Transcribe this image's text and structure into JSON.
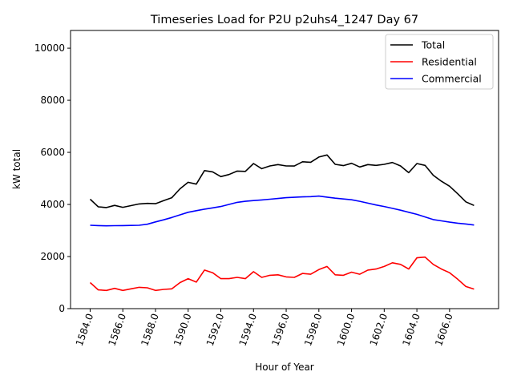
{
  "chart_data": {
    "type": "line",
    "title": "Timeseries Load for P2U p2uhs4_1247  Day 67",
    "xlabel": "Hour of Year",
    "ylabel": "kW total",
    "xlim": [
      1582.8,
      1609.0
    ],
    "ylim": [
      0,
      10680
    ],
    "xticks": [
      1584,
      1586,
      1588,
      1590,
      1592,
      1594,
      1596,
      1598,
      1600,
      1602,
      1604,
      1606
    ],
    "xtick_labels": [
      "1584.0",
      "1586.0",
      "1588.0",
      "1590.0",
      "1592.0",
      "1594.0",
      "1596.0",
      "1598.0",
      "1600.0",
      "1602.0",
      "1604.0",
      "1606.0"
    ],
    "yticks": [
      0,
      2000,
      4000,
      6000,
      8000,
      10000
    ],
    "ytick_labels": [
      "0",
      "2000",
      "4000",
      "6000",
      "8000",
      "10000"
    ],
    "grid": false,
    "legend_position": "top-right",
    "x_start": 1584.0,
    "x_step": 0.5,
    "series": [
      {
        "name": "Total",
        "color": "#000000",
        "values": [
          4200,
          3910,
          3880,
          3965,
          3890,
          3955,
          4020,
          4040,
          4030,
          4150,
          4260,
          4600,
          4850,
          4780,
          5300,
          5250,
          5070,
          5150,
          5280,
          5270,
          5570,
          5375,
          5480,
          5530,
          5480,
          5475,
          5640,
          5620,
          5820,
          5900,
          5540,
          5490,
          5580,
          5440,
          5530,
          5500,
          5540,
          5610,
          5480,
          5220,
          5570,
          5500,
          5120,
          4890,
          4700,
          4410,
          4100,
          3960
        ]
      },
      {
        "name": "Residential",
        "color": "#ff0000",
        "values": [
          1000,
          720,
          700,
          780,
          700,
          760,
          820,
          800,
          700,
          740,
          760,
          1000,
          1150,
          1020,
          1480,
          1380,
          1150,
          1150,
          1200,
          1150,
          1420,
          1200,
          1280,
          1300,
          1220,
          1200,
          1350,
          1320,
          1500,
          1620,
          1300,
          1280,
          1400,
          1320,
          1480,
          1520,
          1620,
          1760,
          1700,
          1520,
          1950,
          1980,
          1700,
          1520,
          1380,
          1130,
          850,
          750
        ]
      },
      {
        "name": "Commercial",
        "color": "#0000ff",
        "values": [
          3200,
          3190,
          3180,
          3185,
          3190,
          3195,
          3200,
          3240,
          3330,
          3410,
          3500,
          3600,
          3700,
          3760,
          3820,
          3870,
          3920,
          4000,
          4080,
          4120,
          4150,
          4175,
          4200,
          4230,
          4260,
          4275,
          4290,
          4300,
          4320,
          4280,
          4240,
          4210,
          4180,
          4120,
          4050,
          3980,
          3920,
          3850,
          3780,
          3700,
          3620,
          3520,
          3420,
          3370,
          3320,
          3280,
          3250,
          3210
        ]
      }
    ]
  }
}
